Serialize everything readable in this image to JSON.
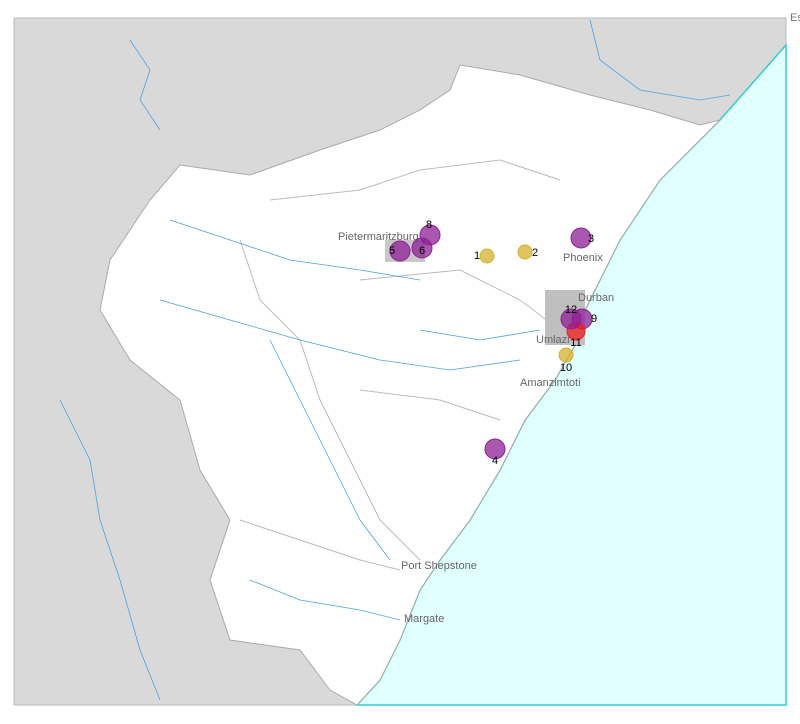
{
  "corner_label": "Es",
  "places": [
    {
      "name": "Pietermaritzburg"
    },
    {
      "name": "Phoenix"
    },
    {
      "name": "Durban"
    },
    {
      "name": "Umlazi"
    },
    {
      "name": "Amanzimtoti"
    },
    {
      "name": "Port Shepstone"
    },
    {
      "name": "Margate"
    }
  ],
  "markers": [
    {
      "label": "1",
      "color": "#d4b02a"
    },
    {
      "label": "2",
      "color": "#d4b02a"
    },
    {
      "label": "3",
      "color": "#8e1f96"
    },
    {
      "label": "4",
      "color": "#8e1f96"
    },
    {
      "label": "5",
      "color": "#8e1f96"
    },
    {
      "label": "6",
      "color": "#8e1f96"
    },
    {
      "label": "8",
      "color": "#8e1f96"
    },
    {
      "label": "9",
      "color": "#8e1f96"
    },
    {
      "label": "10",
      "color": "#d4b02a"
    },
    {
      "label": "11",
      "color": "#f01e1e"
    },
    {
      "label": "12",
      "color": "#8e1f96"
    }
  ]
}
